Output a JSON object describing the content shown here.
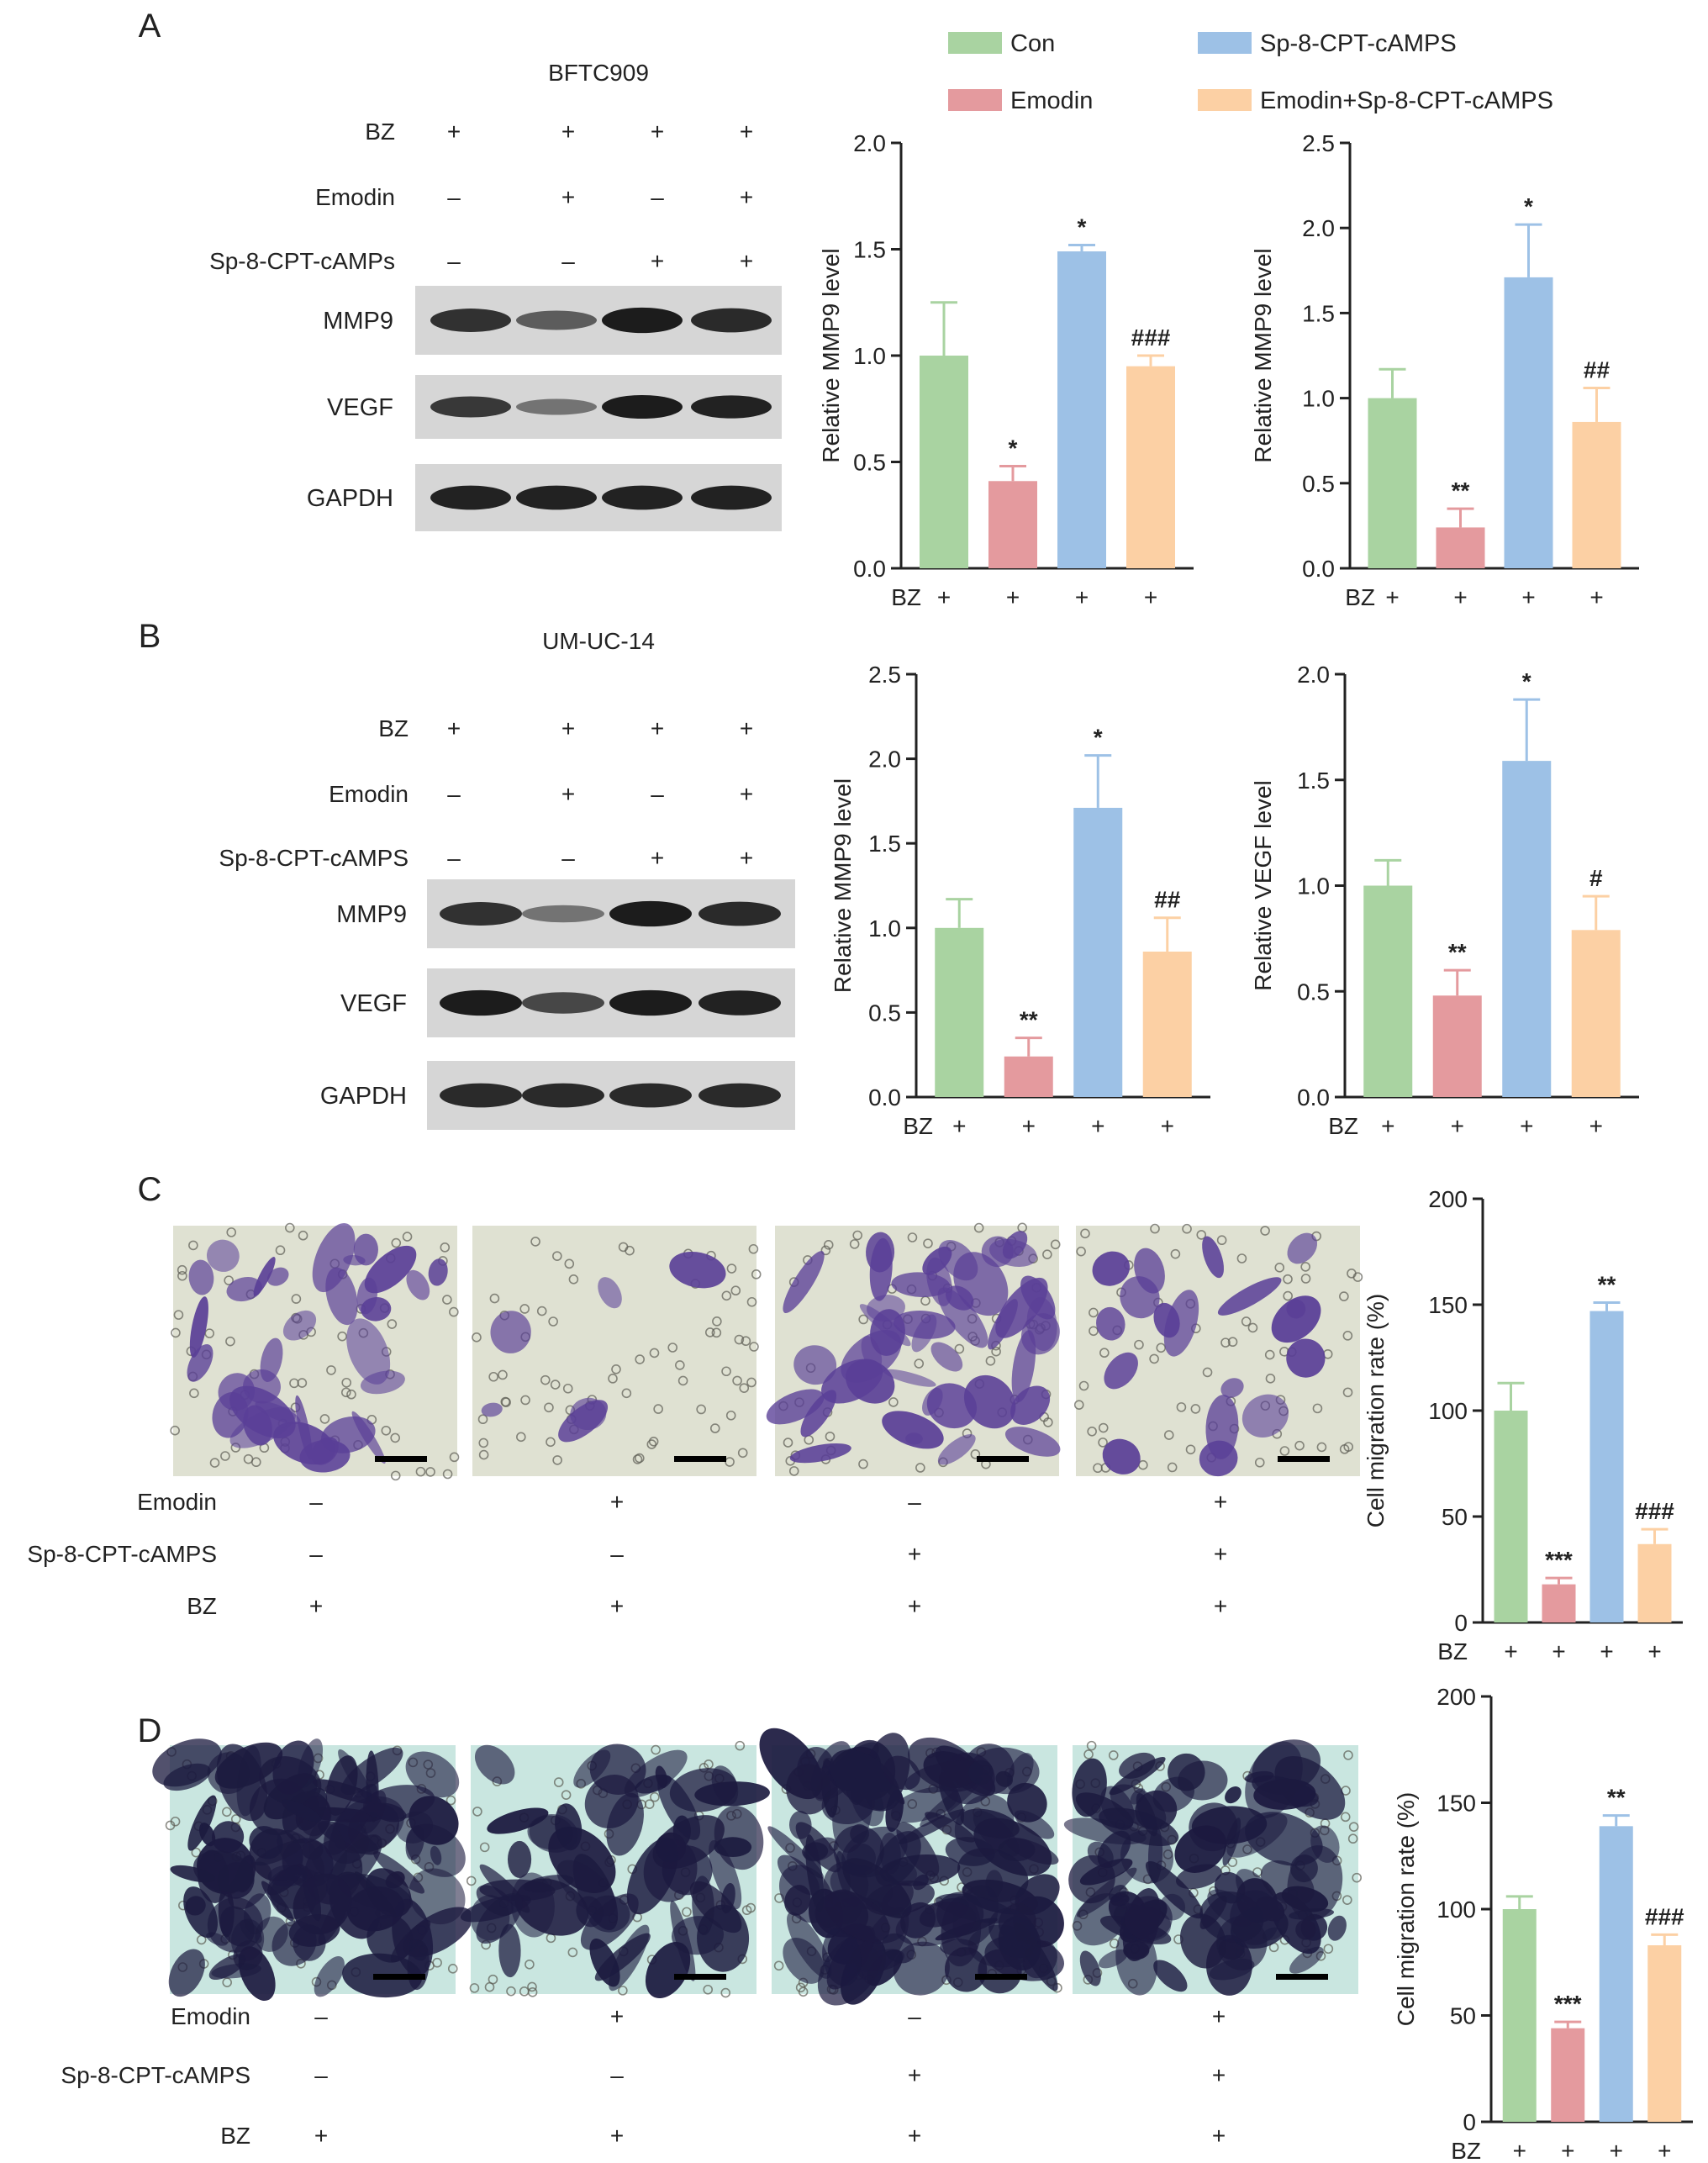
{
  "colors": {
    "con": "#a9d3a1",
    "emodin": "#e49a9e",
    "sp": "#9dc1e6",
    "combo": "#fcd0a4",
    "blot_bg": "#d6d6d6",
    "band": "#141414",
    "transwell_bg_c": "#dfe1d2",
    "transwell_bg_d": "#c9e6e0",
    "stain_c": "#5a3f97",
    "stain_d": "#1c1a3f"
  },
  "legend": [
    {
      "key": "con",
      "label": "Con"
    },
    {
      "key": "sp",
      "label": "Sp-8-CPT-cAMPS"
    },
    {
      "key": "emodin",
      "label": "Emodin"
    },
    {
      "key": "combo",
      "label": "Emodin+Sp-8-CPT-cAMPS"
    }
  ],
  "panels": {
    "A": {
      "letter": "A",
      "cell_line": "BFTC909",
      "treatments": [
        {
          "label": "BZ",
          "signs": [
            "+",
            "+",
            "+",
            "+"
          ]
        },
        {
          "label": "Emodin",
          "signs": [
            "–",
            "+",
            "–",
            "+"
          ]
        },
        {
          "label": "Sp-8-CPT-cAMPs",
          "signs": [
            "–",
            "–",
            "+",
            "+"
          ]
        }
      ],
      "bands": [
        {
          "label": "MMP9",
          "intensity": [
            0.8,
            0.5,
            0.95,
            0.85
          ]
        },
        {
          "label": "VEGF",
          "intensity": [
            0.75,
            0.35,
            0.95,
            0.9
          ]
        },
        {
          "label": "GAPDH",
          "intensity": [
            0.9,
            0.9,
            0.9,
            0.9
          ]
        }
      ]
    },
    "B": {
      "letter": "B",
      "cell_line": "UM-UC-14",
      "treatments": [
        {
          "label": "BZ",
          "signs": [
            "+",
            "+",
            "+",
            "+"
          ]
        },
        {
          "label": "Emodin",
          "signs": [
            "–",
            "+",
            "–",
            "+"
          ]
        },
        {
          "label": "Sp-8-CPT-cAMPS",
          "signs": [
            "–",
            "–",
            "+",
            "+"
          ]
        }
      ],
      "bands": [
        {
          "label": "MMP9",
          "intensity": [
            0.8,
            0.35,
            0.95,
            0.85
          ]
        },
        {
          "label": "VEGF",
          "intensity": [
            0.95,
            0.65,
            0.95,
            0.9
          ]
        },
        {
          "label": "GAPDH",
          "intensity": [
            0.85,
            0.85,
            0.85,
            0.85
          ]
        }
      ]
    },
    "C": {
      "letter": "C",
      "treatments": [
        {
          "label": "Emodin",
          "signs": [
            "–",
            "+",
            "–",
            "+"
          ]
        },
        {
          "label": "Sp-8-CPT-cAMPS",
          "signs": [
            "–",
            "–",
            "+",
            "+"
          ]
        },
        {
          "label": "BZ",
          "signs": [
            "+",
            "+",
            "+",
            "+"
          ]
        }
      ],
      "stain_density": [
        0.55,
        0.1,
        0.7,
        0.3
      ]
    },
    "D": {
      "letter": "D",
      "treatments": [
        {
          "label": "Emodin",
          "signs": [
            "–",
            "+",
            "–",
            "+"
          ]
        },
        {
          "label": "Sp-8-CPT-cAMPS",
          "signs": [
            "–",
            "–",
            "+",
            "+"
          ]
        },
        {
          "label": "BZ",
          "signs": [
            "+",
            "+",
            "+",
            "+"
          ]
        }
      ],
      "stain_density": [
        0.75,
        0.4,
        0.85,
        0.6
      ]
    }
  },
  "chart_data": [
    {
      "id": "A-left",
      "type": "bar",
      "ylabel": "Relative MMP9 level",
      "ylim": [
        0,
        2.0
      ],
      "yticks": [
        "0.0",
        "0.5",
        "1.0",
        "1.5",
        "2.0"
      ],
      "xrow_label": "BZ",
      "xrow_signs": [
        "+",
        "+",
        "+",
        "+"
      ],
      "categories": [
        "Con",
        "Emodin",
        "Sp-8-CPT-cAMPS",
        "Emodin+Sp-8-CPT-cAMPS"
      ],
      "values": [
        1.0,
        0.41,
        1.49,
        0.95
      ],
      "errors": [
        0.25,
        0.07,
        0.03,
        0.05
      ],
      "annotations": [
        "",
        "*",
        "*",
        "###"
      ]
    },
    {
      "id": "A-right",
      "type": "bar",
      "ylabel": "Relative MMP9 level",
      "ylim": [
        0,
        2.5
      ],
      "yticks": [
        "0.0",
        "0.5",
        "1.0",
        "1.5",
        "2.0",
        "2.5"
      ],
      "xrow_label": "BZ",
      "xrow_signs": [
        "+",
        "+",
        "+",
        "+"
      ],
      "categories": [
        "Con",
        "Emodin",
        "Sp-8-CPT-cAMPS",
        "Emodin+Sp-8-CPT-cAMPS"
      ],
      "values": [
        1.0,
        0.24,
        1.71,
        0.86
      ],
      "errors": [
        0.17,
        0.11,
        0.31,
        0.2
      ],
      "annotations": [
        "",
        "**",
        "*",
        "##"
      ]
    },
    {
      "id": "B-left",
      "type": "bar",
      "ylabel": "Relative MMP9 level",
      "ylim": [
        0,
        2.5
      ],
      "yticks": [
        "0.0",
        "0.5",
        "1.0",
        "1.5",
        "2.0",
        "2.5"
      ],
      "xrow_label": "BZ",
      "xrow_signs": [
        "+",
        "+",
        "+",
        "+"
      ],
      "categories": [
        "Con",
        "Emodin",
        "Sp-8-CPT-cAMPS",
        "Emodin+Sp-8-CPT-cAMPS"
      ],
      "values": [
        1.0,
        0.24,
        1.71,
        0.86
      ],
      "errors": [
        0.17,
        0.11,
        0.31,
        0.2
      ],
      "annotations": [
        "",
        "**",
        "*",
        "##"
      ]
    },
    {
      "id": "B-right",
      "type": "bar",
      "ylabel": "Relative VEGF level",
      "ylim": [
        0,
        2.0
      ],
      "yticks": [
        "0.0",
        "0.5",
        "1.0",
        "1.5",
        "2.0"
      ],
      "xrow_label": "BZ",
      "xrow_signs": [
        "+",
        "+",
        "+",
        "+"
      ],
      "categories": [
        "Con",
        "Emodin",
        "Sp-8-CPT-cAMPS",
        "Emodin+Sp-8-CPT-cAMPS"
      ],
      "values": [
        1.0,
        0.48,
        1.59,
        0.79
      ],
      "errors": [
        0.12,
        0.12,
        0.29,
        0.16
      ],
      "annotations": [
        "",
        "**",
        "*",
        "#"
      ]
    },
    {
      "id": "C-chart",
      "type": "bar",
      "ylabel": "Cell migration rate (%)",
      "ylim": [
        0,
        200
      ],
      "yticks": [
        "0",
        "50",
        "100",
        "150",
        "200"
      ],
      "xrow_label": "BZ",
      "xrow_signs": [
        "+",
        "+",
        "+",
        "+"
      ],
      "categories": [
        "Con",
        "Emodin",
        "Sp-8-CPT-cAMPS",
        "Emodin+Sp-8-CPT-cAMPS"
      ],
      "values": [
        100,
        18,
        147,
        37
      ],
      "errors": [
        13,
        3,
        4,
        7
      ],
      "annotations": [
        "",
        "***",
        "**",
        "###"
      ]
    },
    {
      "id": "D-chart",
      "type": "bar",
      "ylabel": "Cell migration rate (%)",
      "ylim": [
        0,
        200
      ],
      "yticks": [
        "0",
        "50",
        "100",
        "150",
        "200"
      ],
      "xrow_label": "BZ",
      "xrow_signs": [
        "+",
        "+",
        "+",
        "+"
      ],
      "categories": [
        "Con",
        "Emodin",
        "Sp-8-CPT-cAMPS",
        "Emodin+Sp-8-CPT-cAMPS"
      ],
      "values": [
        100,
        44,
        139,
        83
      ],
      "errors": [
        6,
        3,
        5,
        5
      ],
      "annotations": [
        "",
        "***",
        "**",
        "###"
      ]
    }
  ]
}
